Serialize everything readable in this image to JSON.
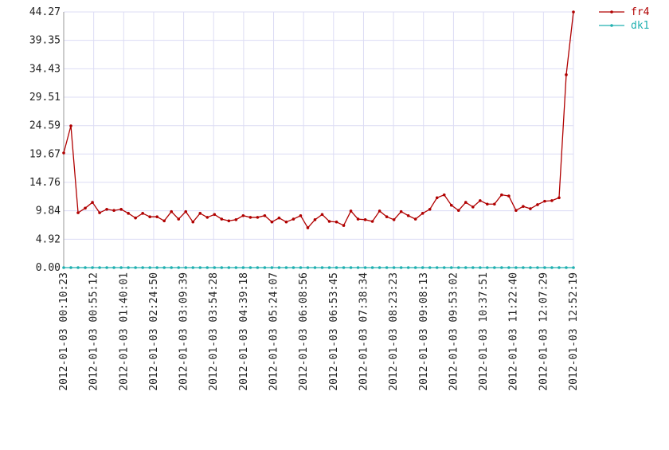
{
  "chart_data": {
    "type": "line",
    "x": [
      623,
      1267,
      1911,
      2555,
      3199,
      3842,
      4486,
      5130,
      5774,
      6418,
      7062,
      7706,
      8350,
      8994,
      9637,
      10281,
      10925,
      11569,
      12213,
      12857,
      13501,
      14145,
      14789,
      15432,
      16076,
      16720,
      17364,
      18008,
      18652,
      19296,
      19940,
      20584,
      21227,
      21871,
      22515,
      23159,
      23803,
      24447,
      25091,
      25735,
      26379,
      27022,
      27666,
      28310,
      28954,
      29598,
      30242,
      30886,
      31530,
      32174,
      32817,
      33461,
      34105,
      34749,
      35393,
      36037,
      36681,
      37325,
      37969,
      38612,
      39256,
      39900,
      40544,
      41188,
      41832,
      42476,
      43120,
      43764,
      44407,
      45051,
      45695,
      46339
    ],
    "series": [
      {
        "name": "fr4",
        "color": "#b00000",
        "values": [
          19.86,
          24.55,
          9.5,
          10.3,
          11.3,
          9.5,
          10.1,
          9.9,
          10.1,
          9.4,
          8.6,
          9.4,
          8.8,
          8.8,
          8.1,
          9.7,
          8.4,
          9.7,
          7.9,
          9.4,
          8.7,
          9.2,
          8.4,
          8.1,
          8.3,
          9.0,
          8.7,
          8.7,
          9.0,
          7.9,
          8.6,
          7.9,
          8.4,
          9.0,
          6.9,
          8.3,
          9.2,
          8.0,
          7.9,
          7.3,
          9.8,
          8.4,
          8.3,
          8.0,
          9.8,
          8.8,
          8.3,
          9.7,
          9.0,
          8.4,
          9.4,
          10.1,
          12.1,
          12.6,
          10.8,
          9.9,
          11.3,
          10.5,
          11.6,
          11.0,
          11.0,
          12.6,
          12.4,
          9.9,
          10.6,
          10.2,
          10.9,
          11.5,
          11.6,
          12.1,
          33.4,
          44.27
        ]
      },
      {
        "name": "dk1",
        "color": "#20b0b0",
        "values": [
          0,
          0,
          0,
          0,
          0,
          0,
          0,
          0,
          0,
          0,
          0,
          0,
          0,
          0,
          0,
          0,
          0,
          0,
          0,
          0,
          0,
          0,
          0,
          0,
          0,
          0,
          0,
          0,
          0,
          0,
          0,
          0,
          0,
          0,
          0,
          0,
          0,
          0,
          0,
          0,
          0,
          0,
          0,
          0,
          0,
          0,
          0,
          0,
          0,
          0,
          0,
          0,
          0,
          0,
          0,
          0,
          0,
          0,
          0,
          0,
          0,
          0,
          0,
          0,
          0,
          0,
          0,
          0,
          0,
          0,
          0,
          0
        ]
      }
    ],
    "xlim": [
      623,
      46339
    ],
    "xticks": [
      {
        "value": 623,
        "label": "2012-01-03 00:10:23"
      },
      {
        "value": 3312,
        "label": "2012-01-03 00:55:12"
      },
      {
        "value": 6001,
        "label": "2012-01-03 01:40:01"
      },
      {
        "value": 8690,
        "label": "2012-01-03 02:24:50"
      },
      {
        "value": 11379,
        "label": "2012-01-03 03:09:39"
      },
      {
        "value": 14068,
        "label": "2012-01-03 03:54:28"
      },
      {
        "value": 16758,
        "label": "2012-01-03 04:39:18"
      },
      {
        "value": 19447,
        "label": "2012-01-03 05:24:07"
      },
      {
        "value": 22136,
        "label": "2012-01-03 06:08:56"
      },
      {
        "value": 24825,
        "label": "2012-01-03 06:53:45"
      },
      {
        "value": 27514,
        "label": "2012-01-03 07:38:34"
      },
      {
        "value": 30203,
        "label": "2012-01-03 08:23:23"
      },
      {
        "value": 32893,
        "label": "2012-01-03 09:08:13"
      },
      {
        "value": 35582,
        "label": "2012-01-03 09:53:02"
      },
      {
        "value": 38271,
        "label": "2012-01-03 10:37:51"
      },
      {
        "value": 40960,
        "label": "2012-01-03 11:22:40"
      },
      {
        "value": 43649,
        "label": "2012-01-03 12:07:29"
      },
      {
        "value": 46339,
        "label": "2012-01-03 12:52:19"
      }
    ],
    "ylim": [
      0,
      44.27
    ],
    "yticks": [
      {
        "value": 0,
        "label": "0.00"
      },
      {
        "value": 4.92,
        "label": "4.92"
      },
      {
        "value": 9.84,
        "label": "9.84"
      },
      {
        "value": 14.76,
        "label": "14.76"
      },
      {
        "value": 19.67,
        "label": "19.67"
      },
      {
        "value": 24.59,
        "label": "24.59"
      },
      {
        "value": 29.51,
        "label": "29.51"
      },
      {
        "value": 34.43,
        "label": "34.43"
      },
      {
        "value": 39.35,
        "label": "39.35"
      },
      {
        "value": 44.27,
        "label": "44.27"
      }
    ],
    "grid": true,
    "legend": "top-right"
  }
}
